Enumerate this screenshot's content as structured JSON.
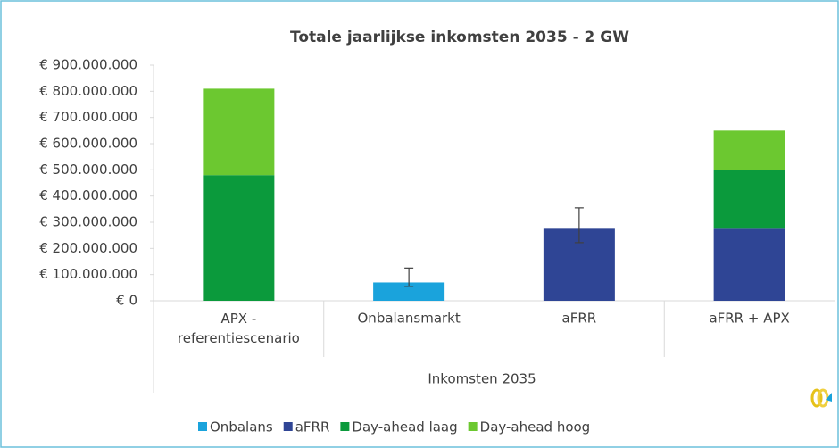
{
  "chart_data": {
    "type": "stacked_bar",
    "title": "Totale jaarlijkse inkomsten 2035 - 2 GW",
    "x_label": "Inkomsten 2035",
    "categories": [
      "APX - referentiescenario",
      "Onbalansmarkt",
      "aFRR",
      "aFRR + APX"
    ],
    "series": [
      {
        "name": "Onbalans",
        "color": "#1aa3dc",
        "values": [
          null,
          70000000,
          null,
          null
        ],
        "error_minus": [
          null,
          15000000,
          null,
          null
        ],
        "error_plus": [
          null,
          55000000,
          null,
          null
        ]
      },
      {
        "name": "aFRR",
        "color": "#2f4595",
        "values": [
          null,
          null,
          275000000,
          275000000
        ],
        "error_minus": [
          null,
          null,
          53000000,
          null
        ],
        "error_plus": [
          null,
          null,
          80000000,
          null
        ]
      },
      {
        "name": "Day-ahead laag",
        "color": "#0b9a3c",
        "values": [
          480000000,
          null,
          null,
          225000000
        ]
      },
      {
        "name": "Day-ahead hoog",
        "color": "#6cc830",
        "values": [
          330000000,
          null,
          null,
          150000000
        ]
      }
    ],
    "ylim": [
      0,
      900000000
    ],
    "yticks": [
      {
        "value": 0,
        "label": "€ 0"
      },
      {
        "value": 100000000,
        "label": "€ 100.000.000"
      },
      {
        "value": 200000000,
        "label": "€ 200.000.000"
      },
      {
        "value": 300000000,
        "label": "€ 300.000.000"
      },
      {
        "value": 400000000,
        "label": "€ 400.000.000"
      },
      {
        "value": 500000000,
        "label": "€ 500.000.000"
      },
      {
        "value": 600000000,
        "label": "€ 600.000.000"
      },
      {
        "value": 700000000,
        "label": "€ 700.000.000"
      },
      {
        "value": 800000000,
        "label": "€ 800.000.000"
      },
      {
        "value": 900000000,
        "label": "€ 900.000.000"
      }
    ],
    "grid": false,
    "legend": "bottom"
  }
}
